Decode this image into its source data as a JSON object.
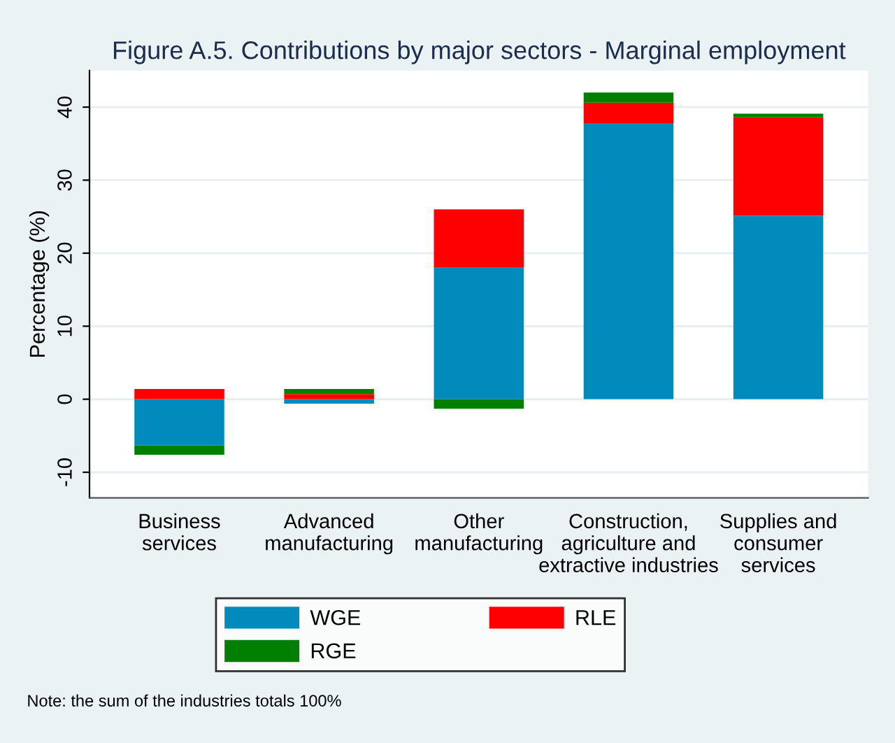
{
  "chart_data": {
    "type": "bar",
    "stacked": true,
    "title": "Figure A.5. Contributions by major sectors - Marginal employment",
    "ylabel": "Percentage (%)",
    "categories": [
      "Business\nservices",
      "Advanced\nmanufacturing",
      "Other\nmanufacturing",
      "Construction,\nagriculture and\nextractive industries",
      "Supplies and\nconsumer\nservices"
    ],
    "series": [
      {
        "name": "WGE",
        "color": "#008bbc",
        "values": [
          -6.3,
          -0.6,
          18.0,
          37.8,
          25.1
        ]
      },
      {
        "name": "RLE",
        "color": "#ff0000",
        "values": [
          1.4,
          0.7,
          8.0,
          2.8,
          13.5
        ]
      },
      {
        "name": "RGE",
        "color": "#007f00",
        "values": [
          -1.3,
          0.7,
          -1.3,
          1.4,
          0.5
        ]
      }
    ],
    "ylim": [
      -13.5,
      45
    ],
    "yticks": [
      -10,
      0,
      10,
      20,
      30,
      40
    ],
    "grid": "y",
    "legend": "bottom",
    "annotations": [
      "Note: the sum of the industries totals 100%"
    ]
  }
}
